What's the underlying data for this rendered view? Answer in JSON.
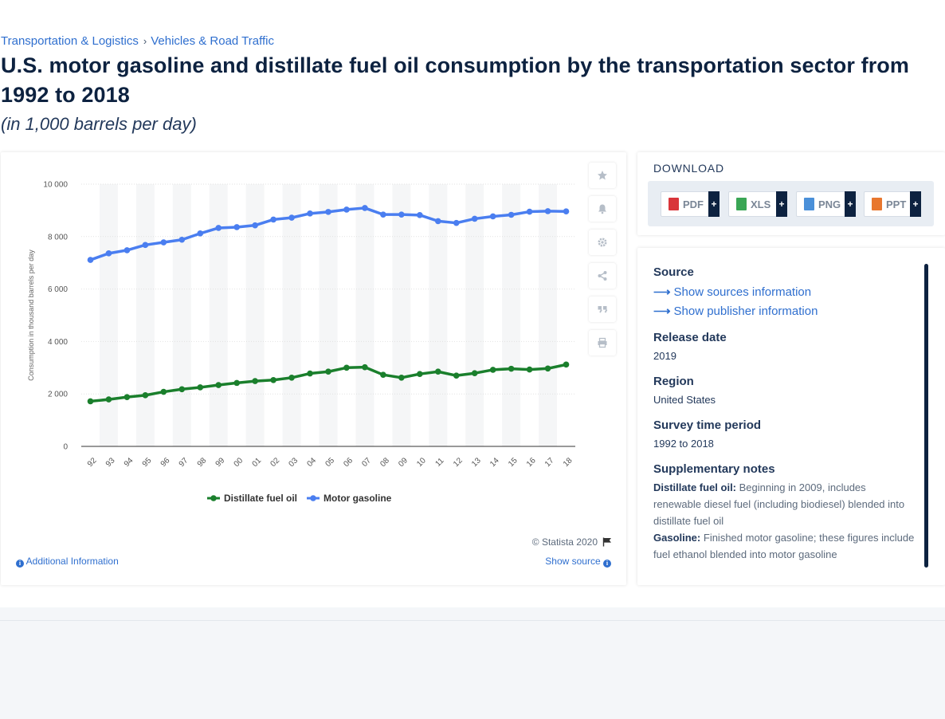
{
  "breadcrumb": {
    "items": [
      "Transportation & Logistics",
      "Vehicles & Road Traffic"
    ],
    "separator": "›"
  },
  "title": "U.S. motor gasoline and distillate fuel oil consumption by the transportation sector from 1992 to 2018",
  "subtitle": "(in 1,000 barrels per day)",
  "chart_data": {
    "type": "line",
    "categories": [
      "92",
      "93",
      "94",
      "95",
      "96",
      "97",
      "98",
      "99",
      "00",
      "01",
      "02",
      "03",
      "04",
      "05",
      "06",
      "07",
      "08",
      "09",
      "10",
      "11",
      "12",
      "13",
      "14",
      "15",
      "16",
      "17",
      "18"
    ],
    "series": [
      {
        "name": "Distillate fuel oil",
        "color": "#1a7f2c",
        "values": [
          1720,
          1790,
          1880,
          1950,
          2080,
          2180,
          2250,
          2340,
          2420,
          2490,
          2530,
          2620,
          2780,
          2850,
          3000,
          3020,
          2730,
          2620,
          2760,
          2850,
          2700,
          2790,
          2920,
          2960,
          2930,
          2970,
          3120
        ]
      },
      {
        "name": "Motor gasoline",
        "color": "#4a7ef0",
        "values": [
          7110,
          7360,
          7480,
          7680,
          7780,
          7880,
          8120,
          8330,
          8360,
          8430,
          8650,
          8720,
          8880,
          8940,
          9030,
          9090,
          8840,
          8840,
          8820,
          8590,
          8520,
          8680,
          8770,
          8830,
          8950,
          8970,
          8960
        ]
      }
    ],
    "ylabel": "Consumption in thousand barrels per day",
    "xlabel": "",
    "yticks": [
      "0",
      "2 000",
      "4 000",
      "6 000",
      "8 000",
      "10 000"
    ],
    "ylim": [
      0,
      10000
    ],
    "grid": true,
    "legend_position": "bottom"
  },
  "chart_footer": {
    "copyright": "© Statista 2020",
    "additional_info": "Additional Information",
    "show_source": "Show source"
  },
  "tools": [
    "favorite-star-icon",
    "bell-icon",
    "gear-icon",
    "share-icon",
    "quote-icon",
    "print-icon"
  ],
  "download": {
    "title": "DOWNLOAD",
    "buttons": [
      {
        "label": "PDF",
        "color": "#d9353a"
      },
      {
        "label": "XLS",
        "color": "#3aa655"
      },
      {
        "label": "PNG",
        "color": "#4a90d9"
      },
      {
        "label": "PPT",
        "color": "#e8772e"
      }
    ],
    "plus": "+"
  },
  "info": {
    "source_label": "Source",
    "show_sources": "Show sources information",
    "show_publisher": "Show publisher information",
    "release_label": "Release date",
    "release_value": "2019",
    "region_label": "Region",
    "region_value": "United States",
    "period_label": "Survey time period",
    "period_value": "1992 to 2018",
    "notes_label": "Supplementary notes",
    "note1_title": "Distillate fuel oil:",
    "note1_text": "Beginning in 2009, includes renewable diesel fuel (including biodiesel) blended into distillate fuel oil",
    "note2_title": "Gasoline:",
    "note2_text": "Finished motor gasoline; these figures include fuel ethanol blended into motor gasoline"
  }
}
